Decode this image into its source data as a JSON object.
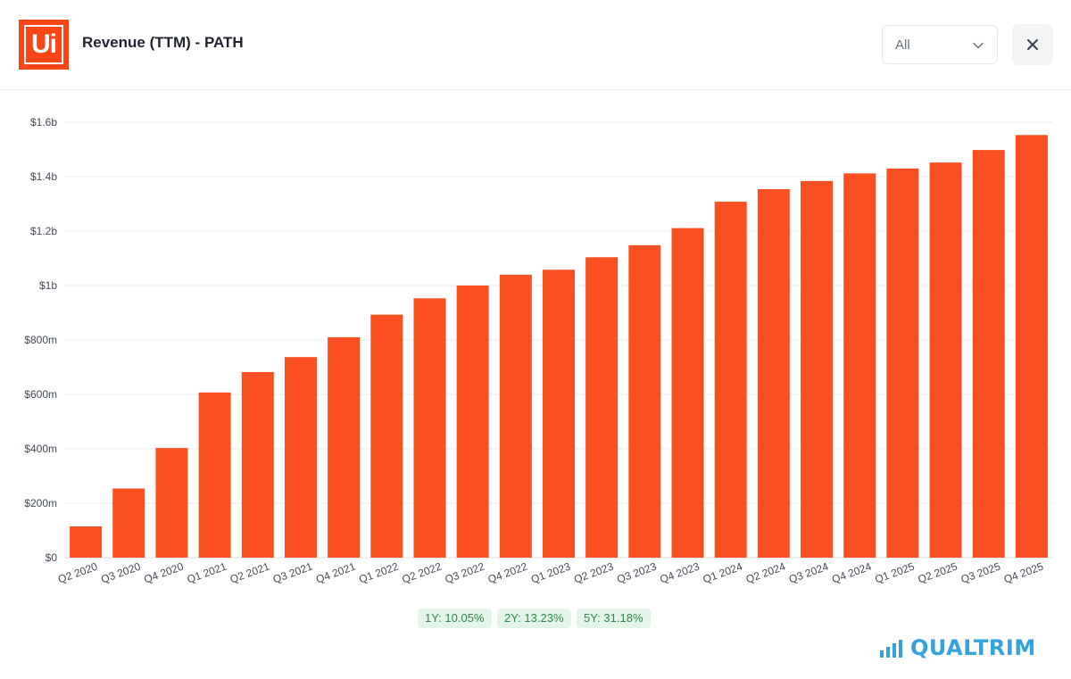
{
  "header": {
    "title": "Revenue (TTM) - PATH",
    "logo_text": "Ui",
    "period_select": "All"
  },
  "growth": [
    {
      "label": "1Y: 10.05%"
    },
    {
      "label": "2Y: 13.23%"
    },
    {
      "label": "5Y: 31.18%"
    }
  ],
  "brand": "QUALTRIM",
  "colors": {
    "bar": "#fa4f20",
    "accent": "#fa4616",
    "brand": "#33a3dc"
  },
  "chart_data": {
    "type": "bar",
    "title": "Revenue (TTM) - PATH",
    "xlabel": "",
    "ylabel": "",
    "ylim": [
      0,
      1.6
    ],
    "unit": "billions USD",
    "grid": true,
    "y_ticks": [
      {
        "value": 0,
        "label": "$0"
      },
      {
        "value": 0.2,
        "label": "$200m"
      },
      {
        "value": 0.4,
        "label": "$400m"
      },
      {
        "value": 0.6,
        "label": "$600m"
      },
      {
        "value": 0.8,
        "label": "$800m"
      },
      {
        "value": 1.0,
        "label": "$1b"
      },
      {
        "value": 1.2,
        "label": "$1.2b"
      },
      {
        "value": 1.4,
        "label": "$1.4b"
      },
      {
        "value": 1.6,
        "label": "$1.6b"
      }
    ],
    "categories": [
      "Q2 2020",
      "Q3 2020",
      "Q4 2020",
      "Q1 2021",
      "Q2 2021",
      "Q3 2021",
      "Q4 2021",
      "Q1 2022",
      "Q2 2022",
      "Q3 2022",
      "Q4 2022",
      "Q1 2023",
      "Q2 2023",
      "Q3 2023",
      "Q4 2023",
      "Q1 2024",
      "Q2 2024",
      "Q3 2024",
      "Q4 2024",
      "Q1 2025",
      "Q2 2025",
      "Q3 2025",
      "Q4 2025"
    ],
    "values": [
      0.115,
      0.254,
      0.403,
      0.607,
      0.682,
      0.737,
      0.81,
      0.893,
      0.953,
      1.0,
      1.04,
      1.058,
      1.104,
      1.148,
      1.211,
      1.308,
      1.354,
      1.384,
      1.412,
      1.43,
      1.452,
      1.498,
      1.553
    ]
  }
}
